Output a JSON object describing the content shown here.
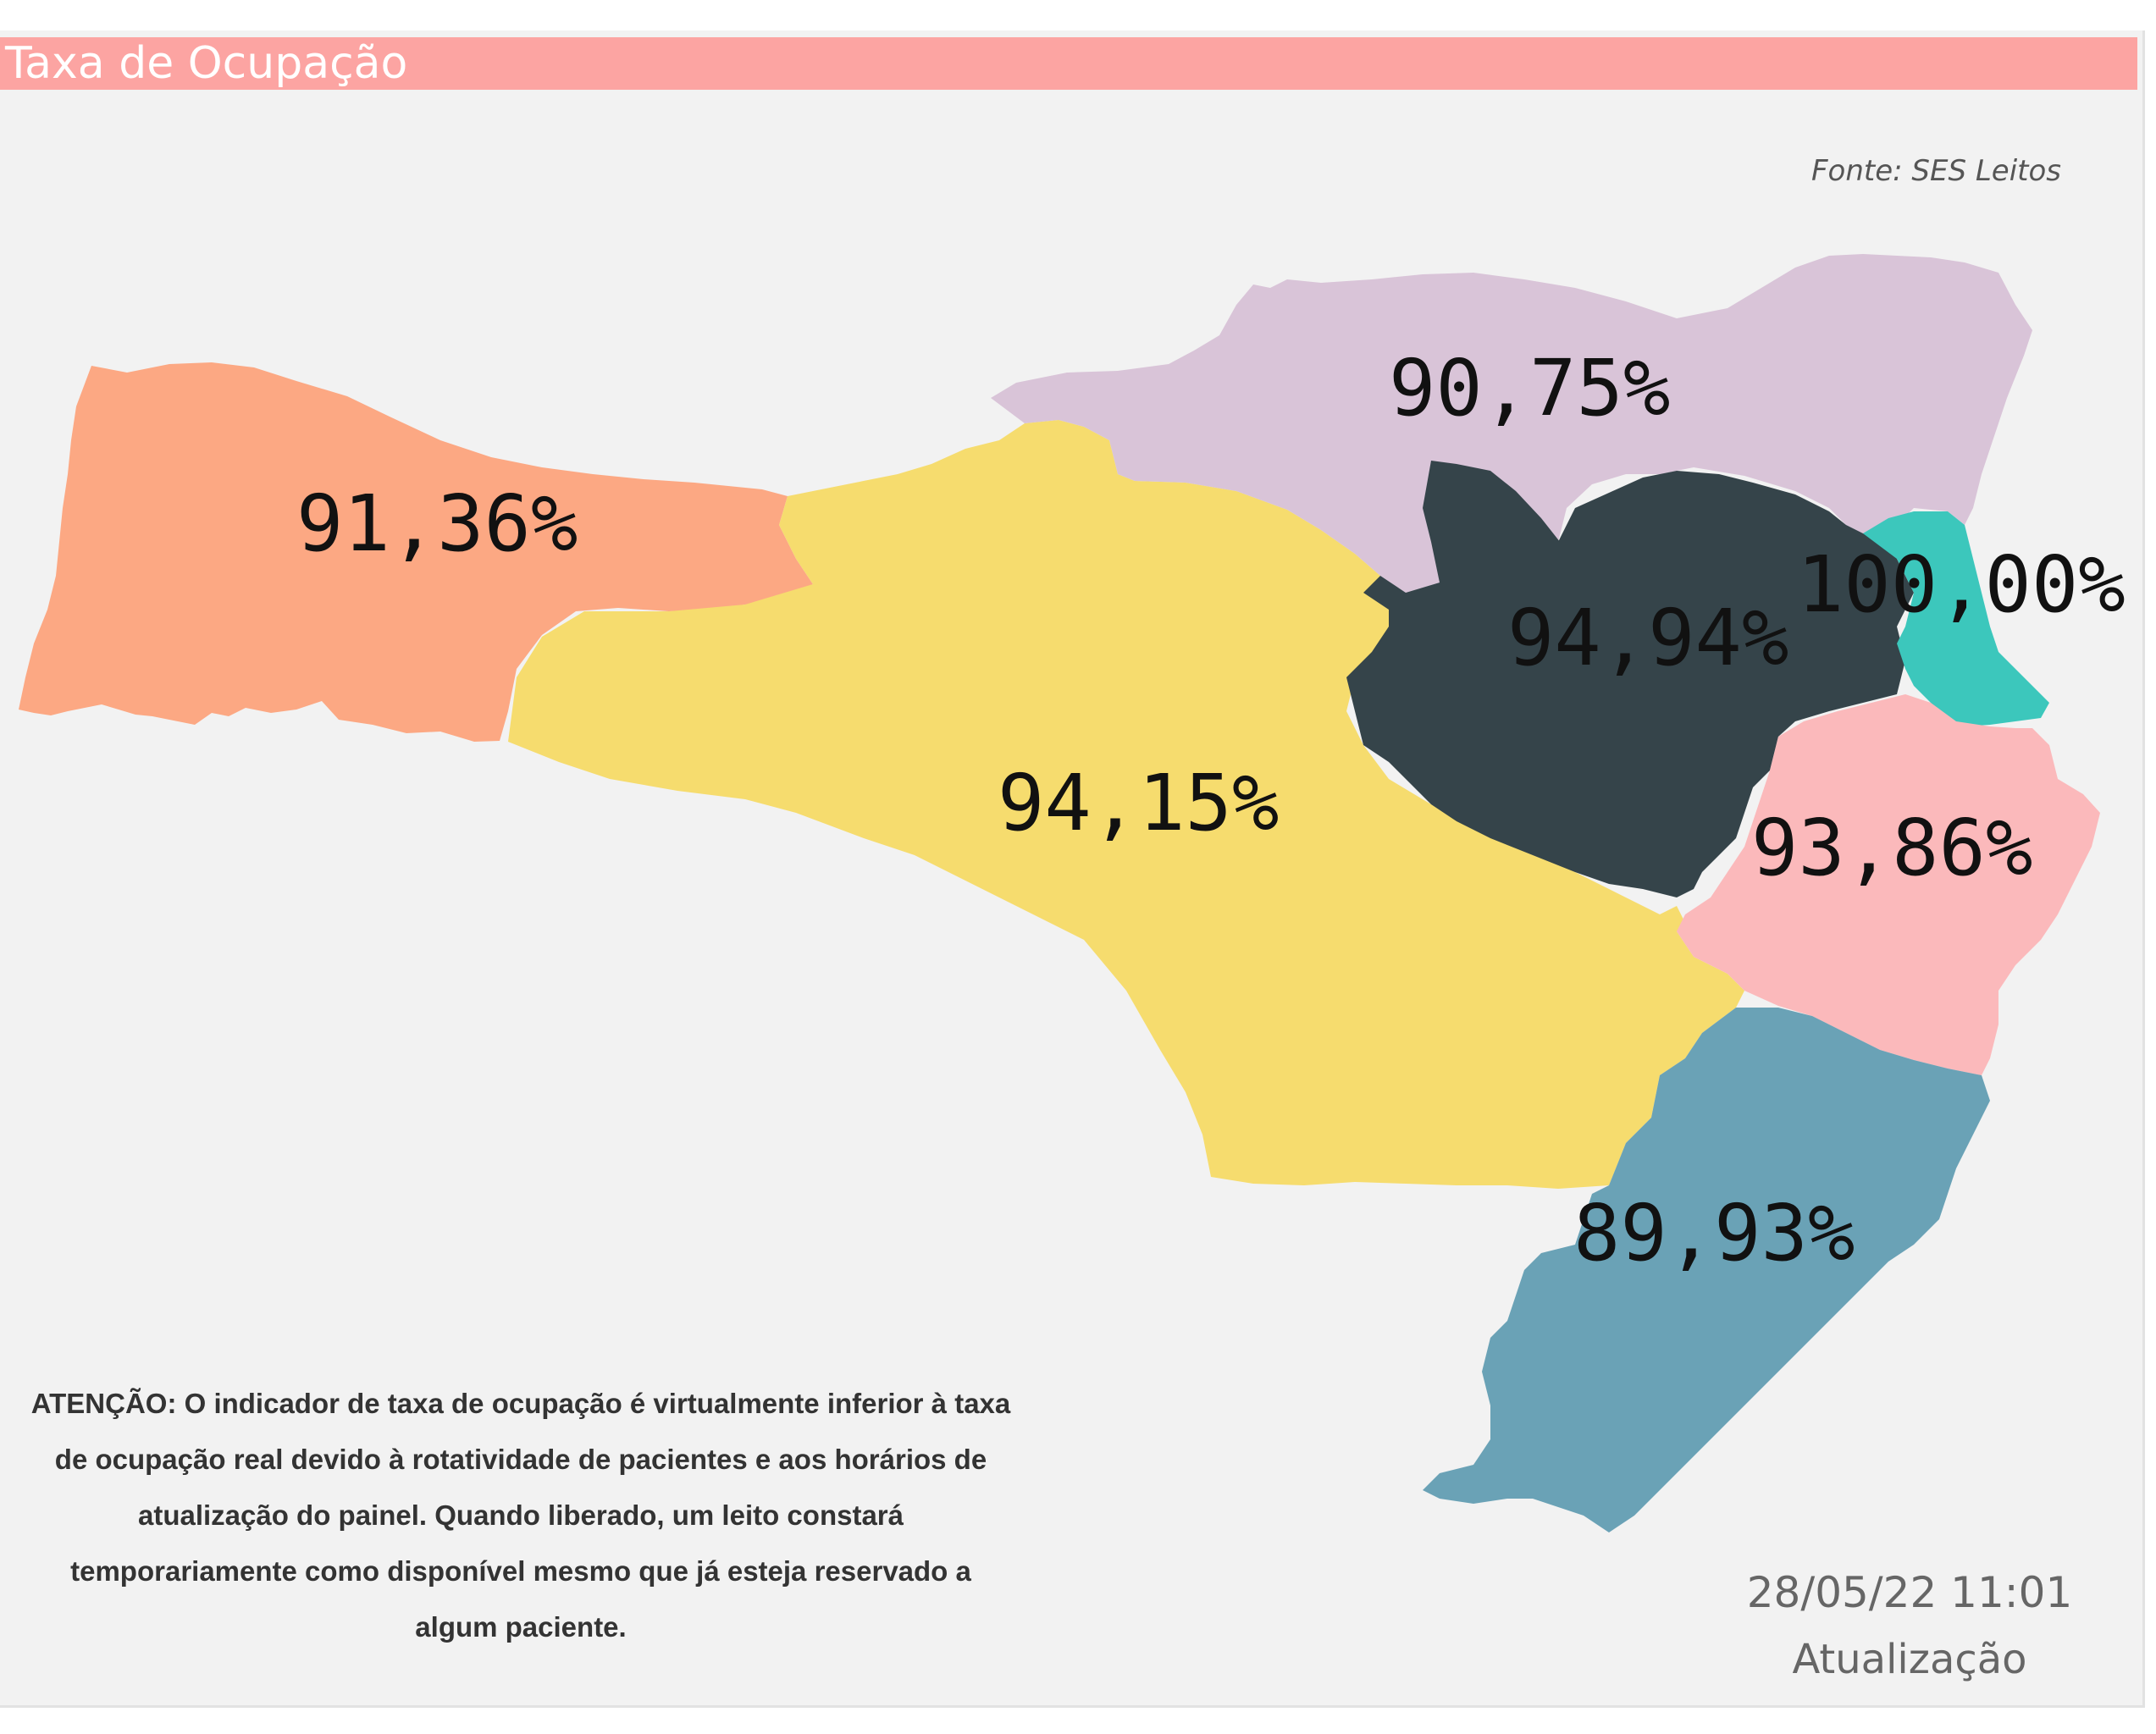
{
  "header": {
    "title": "Taxa de Ocupação",
    "title_bar_color": "#fca4a2"
  },
  "source_note": "Fonte: SES Leitos",
  "map": {
    "regions": [
      {
        "id": "oeste",
        "value": "91,36%",
        "color": "#fca883"
      },
      {
        "id": "meio-oeste-serra",
        "value": "94,15%",
        "color": "#f6dc6e"
      },
      {
        "id": "planalto-norte-nordeste",
        "value": "90,75%",
        "color": "#d9c4d8"
      },
      {
        "id": "vale-itajai",
        "value": "94,94%",
        "color": "#35444a"
      },
      {
        "id": "foz-itajai",
        "value": "100,00%",
        "color": "#3cc7bc"
      },
      {
        "id": "grande-florianopolis",
        "value": "93,86%",
        "color": "#fbb9bb"
      },
      {
        "id": "sul",
        "value": "89,93%",
        "color": "#6aa2b6"
      }
    ]
  },
  "notice": {
    "line1": "ATENÇÃO: O indicador de taxa de ocupação é virtualmente inferior à taxa",
    "line2": "de ocupação real devido à rotatividade de pacientes e aos horários de",
    "line3": "atualização do painel.  Quando liberado, um leito constará",
    "line4": "temporariamente como disponível mesmo que já esteja reservado a",
    "line5": "algum paciente."
  },
  "update": {
    "timestamp": "28/05/22 11:01",
    "label": "Atualização"
  }
}
